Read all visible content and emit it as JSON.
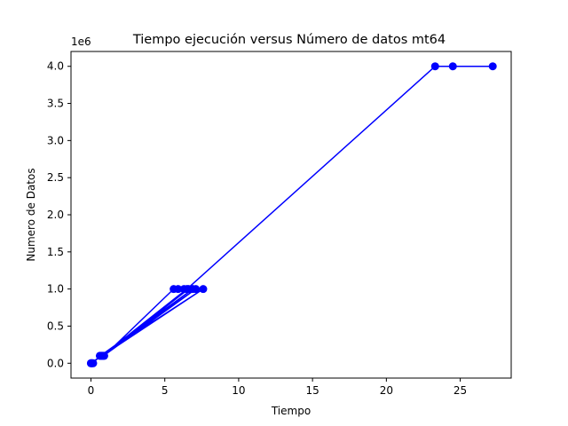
{
  "chart_data": {
    "type": "line",
    "title": "Tiempo ejecución  versus Número de datos mt64",
    "xlabel": "Tiempo",
    "ylabel": "Numero de Datos",
    "y_scale_label": "1e6",
    "xlim": [
      -1.35,
      28.45
    ],
    "ylim": [
      -0.2,
      4.2
    ],
    "x_ticks": [
      0,
      5,
      10,
      15,
      20,
      25
    ],
    "x_tick_labels": [
      "0",
      "5",
      "10",
      "15",
      "20",
      "25"
    ],
    "y_ticks": [
      0.0,
      0.5,
      1.0,
      1.5,
      2.0,
      2.5,
      3.0,
      3.5,
      4.0
    ],
    "y_tick_labels": [
      "0.0",
      "0.5",
      "1.0",
      "1.5",
      "2.0",
      "2.5",
      "3.0",
      "3.5",
      "4.0"
    ],
    "grid": false,
    "series": [
      {
        "color": "#0000ff",
        "marker": "circle",
        "points": [
          {
            "x": 0.0,
            "y": 0.0
          },
          {
            "x": 0.05,
            "y": 0.0
          },
          {
            "x": 0.1,
            "y": 0.0
          },
          {
            "x": 0.15,
            "y": 0.0
          },
          {
            "x": 0.6,
            "y": 0.1
          },
          {
            "x": 0.7,
            "y": 0.1
          },
          {
            "x": 0.8,
            "y": 0.1
          },
          {
            "x": 0.9,
            "y": 0.1
          },
          {
            "x": 5.6,
            "y": 1.0
          },
          {
            "x": 5.9,
            "y": 1.0
          },
          {
            "x": 6.3,
            "y": 1.0
          },
          {
            "x": 6.6,
            "y": 1.0
          },
          {
            "x": 0.85,
            "y": 0.1
          },
          {
            "x": 7.1,
            "y": 1.0
          },
          {
            "x": 0.0,
            "y": 0.0
          },
          {
            "x": 7.6,
            "y": 1.0
          },
          {
            "x": 0.65,
            "y": 0.1
          },
          {
            "x": 6.9,
            "y": 1.0
          },
          {
            "x": 0.75,
            "y": 0.1
          },
          {
            "x": 6.5,
            "y": 1.0
          },
          {
            "x": 23.3,
            "y": 4.0
          },
          {
            "x": 24.5,
            "y": 4.0
          },
          {
            "x": 27.2,
            "y": 4.0
          }
        ]
      }
    ]
  }
}
